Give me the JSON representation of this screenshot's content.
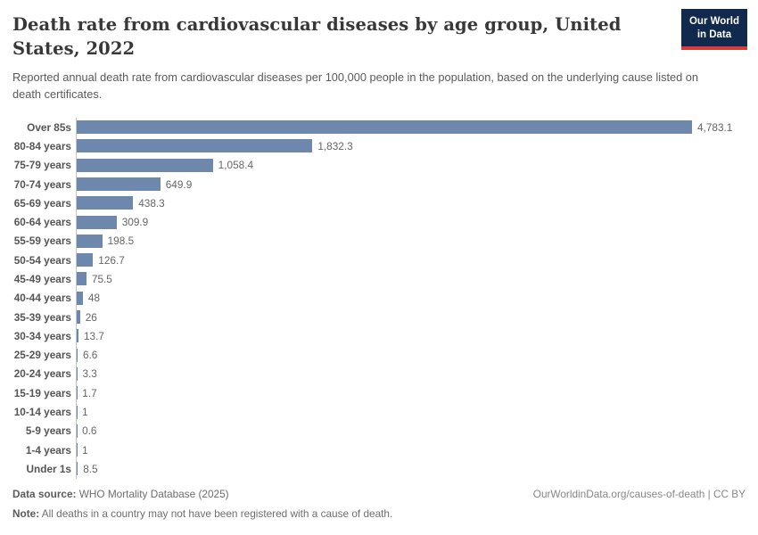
{
  "header": {
    "title": "Death rate from cardiovascular diseases by age group, United States, 2022",
    "logo": {
      "line1": "Our World",
      "line2": "in Data"
    }
  },
  "subtitle": "Reported annual death rate from cardiovascular diseases per 100,000 people in the population, based on the underlying cause listed on death certificates.",
  "chart_data": {
    "type": "bar",
    "orientation": "horizontal",
    "title": "Death rate from cardiovascular diseases by age group, United States, 2022",
    "xlabel": "",
    "ylabel": "",
    "xlim": [
      0,
      4783.1
    ],
    "grid": false,
    "legend": false,
    "bar_color": "#6e87ad",
    "axis_line_color": "#c7c7c7",
    "categories": [
      "Over 85s",
      "80-84 years",
      "75-79 years",
      "70-74 years",
      "65-69 years",
      "60-64 years",
      "55-59 years",
      "50-54 years",
      "45-49 years",
      "40-44 years",
      "35-39 years",
      "30-34 years",
      "25-29 years",
      "20-24 years",
      "15-19 years",
      "10-14 years",
      "5-9 years",
      "1-4 years",
      "Under 1s"
    ],
    "values": [
      4783.1,
      1832.3,
      1058.4,
      649.9,
      438.3,
      309.9,
      198.5,
      126.7,
      75.5,
      48,
      26,
      13.7,
      6.6,
      3.3,
      1.7,
      1,
      0.6,
      1,
      8.5
    ],
    "value_labels": [
      "4,783.1",
      "1,832.3",
      "1,058.4",
      "649.9",
      "438.3",
      "309.9",
      "198.5",
      "126.7",
      "75.5",
      "48",
      "26",
      "13.7",
      "6.6",
      "3.3",
      "1.7",
      "1",
      "0.6",
      "1",
      "8.5"
    ]
  },
  "footer": {
    "datasource_label": "Data source:",
    "datasource_text": " WHO Mortality Database (2025)",
    "note_label": "Note:",
    "note_text": " All deaths in a country may not have been registered with a cause of death.",
    "credit": "OurWorldinData.org/causes-of-death | CC BY"
  }
}
